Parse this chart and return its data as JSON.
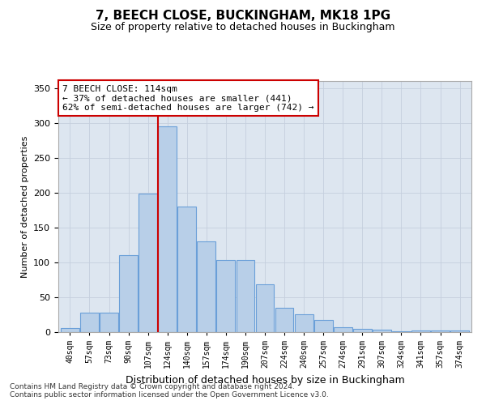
{
  "title": "7, BEECH CLOSE, BUCKINGHAM, MK18 1PG",
  "subtitle": "Size of property relative to detached houses in Buckingham",
  "xlabel": "Distribution of detached houses by size in Buckingham",
  "ylabel": "Number of detached properties",
  "categories": [
    "40sqm",
    "57sqm",
    "73sqm",
    "90sqm",
    "107sqm",
    "124sqm",
    "140sqm",
    "157sqm",
    "174sqm",
    "190sqm",
    "207sqm",
    "224sqm",
    "240sqm",
    "257sqm",
    "274sqm",
    "291sqm",
    "307sqm",
    "324sqm",
    "341sqm",
    "357sqm",
    "374sqm"
  ],
  "values": [
    6,
    28,
    28,
    110,
    199,
    295,
    180,
    130,
    103,
    103,
    68,
    35,
    25,
    17,
    7,
    5,
    3,
    1,
    2,
    2,
    2
  ],
  "bar_color": "#b8cfe8",
  "bar_edge_color": "#6a9fd8",
  "vline_color": "#cc0000",
  "annotation_text": "7 BEECH CLOSE: 114sqm\n← 37% of detached houses are smaller (441)\n62% of semi-detached houses are larger (742) →",
  "annotation_box_color": "#ffffff",
  "annotation_box_edge": "#cc0000",
  "bg_color": "#dde6f0",
  "footer1": "Contains HM Land Registry data © Crown copyright and database right 2024.",
  "footer2": "Contains public sector information licensed under the Open Government Licence v3.0.",
  "ylim": [
    0,
    360
  ],
  "yticks": [
    0,
    50,
    100,
    150,
    200,
    250,
    300,
    350
  ],
  "title_fontsize": 11,
  "subtitle_fontsize": 9
}
